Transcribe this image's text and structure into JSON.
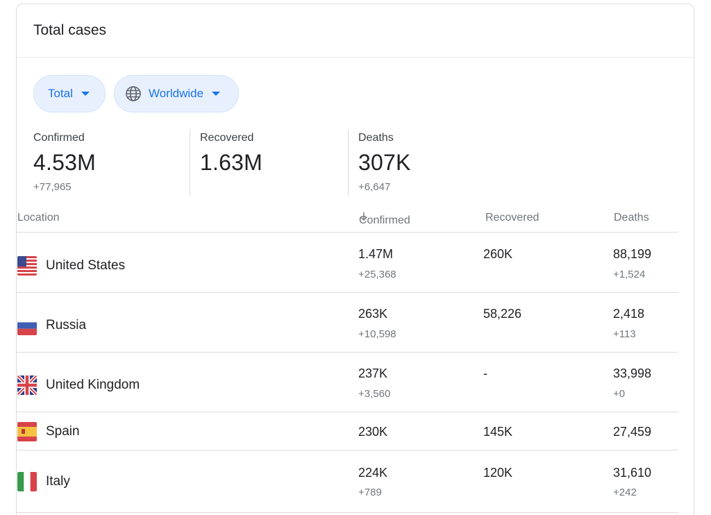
{
  "card": {
    "title": "Total cases"
  },
  "filters": {
    "total_label": "Total",
    "region_label": "Worldwide"
  },
  "summary": {
    "confirmed": {
      "label": "Confirmed",
      "value": "4.53M",
      "delta": "+77,965"
    },
    "recovered": {
      "label": "Recovered",
      "value": "1.63M"
    },
    "deaths": {
      "label": "Deaths",
      "value": "307K",
      "delta": "+6,647"
    }
  },
  "table": {
    "headers": {
      "location": "Location",
      "confirmed": "Confirmed",
      "recovered": "Recovered",
      "deaths": "Deaths"
    },
    "sort_icon": "arrow-down-icon",
    "rows": [
      {
        "location": "United States",
        "flag": "us-flag-icon",
        "confirmed": "1.47M",
        "confirmed_delta": "+25,368",
        "recovered": "260K",
        "deaths": "88,199",
        "deaths_delta": "+1,524"
      },
      {
        "location": "Russia",
        "flag": "russia-flag-icon",
        "confirmed": "263K",
        "confirmed_delta": "+10,598",
        "recovered": "58,226",
        "deaths": "2,418",
        "deaths_delta": "+113"
      },
      {
        "location": "United Kingdom",
        "flag": "uk-flag-icon",
        "confirmed": "237K",
        "confirmed_delta": "+3,560",
        "recovered": "-",
        "deaths": "33,998",
        "deaths_delta": "+0"
      },
      {
        "location": "Spain",
        "flag": "spain-flag-icon",
        "confirmed": "230K",
        "recovered": "145K",
        "deaths": "27,459"
      },
      {
        "location": "Italy",
        "flag": "italy-flag-icon",
        "confirmed": "224K",
        "confirmed_delta": "+789",
        "recovered": "120K",
        "deaths": "31,610",
        "deaths_delta": "+242"
      }
    ]
  },
  "colors": {
    "accent": "#1a73e8",
    "chip_bg": "#e8f0fe",
    "muted_text": "#70757a",
    "divider": "#dadce0"
  }
}
